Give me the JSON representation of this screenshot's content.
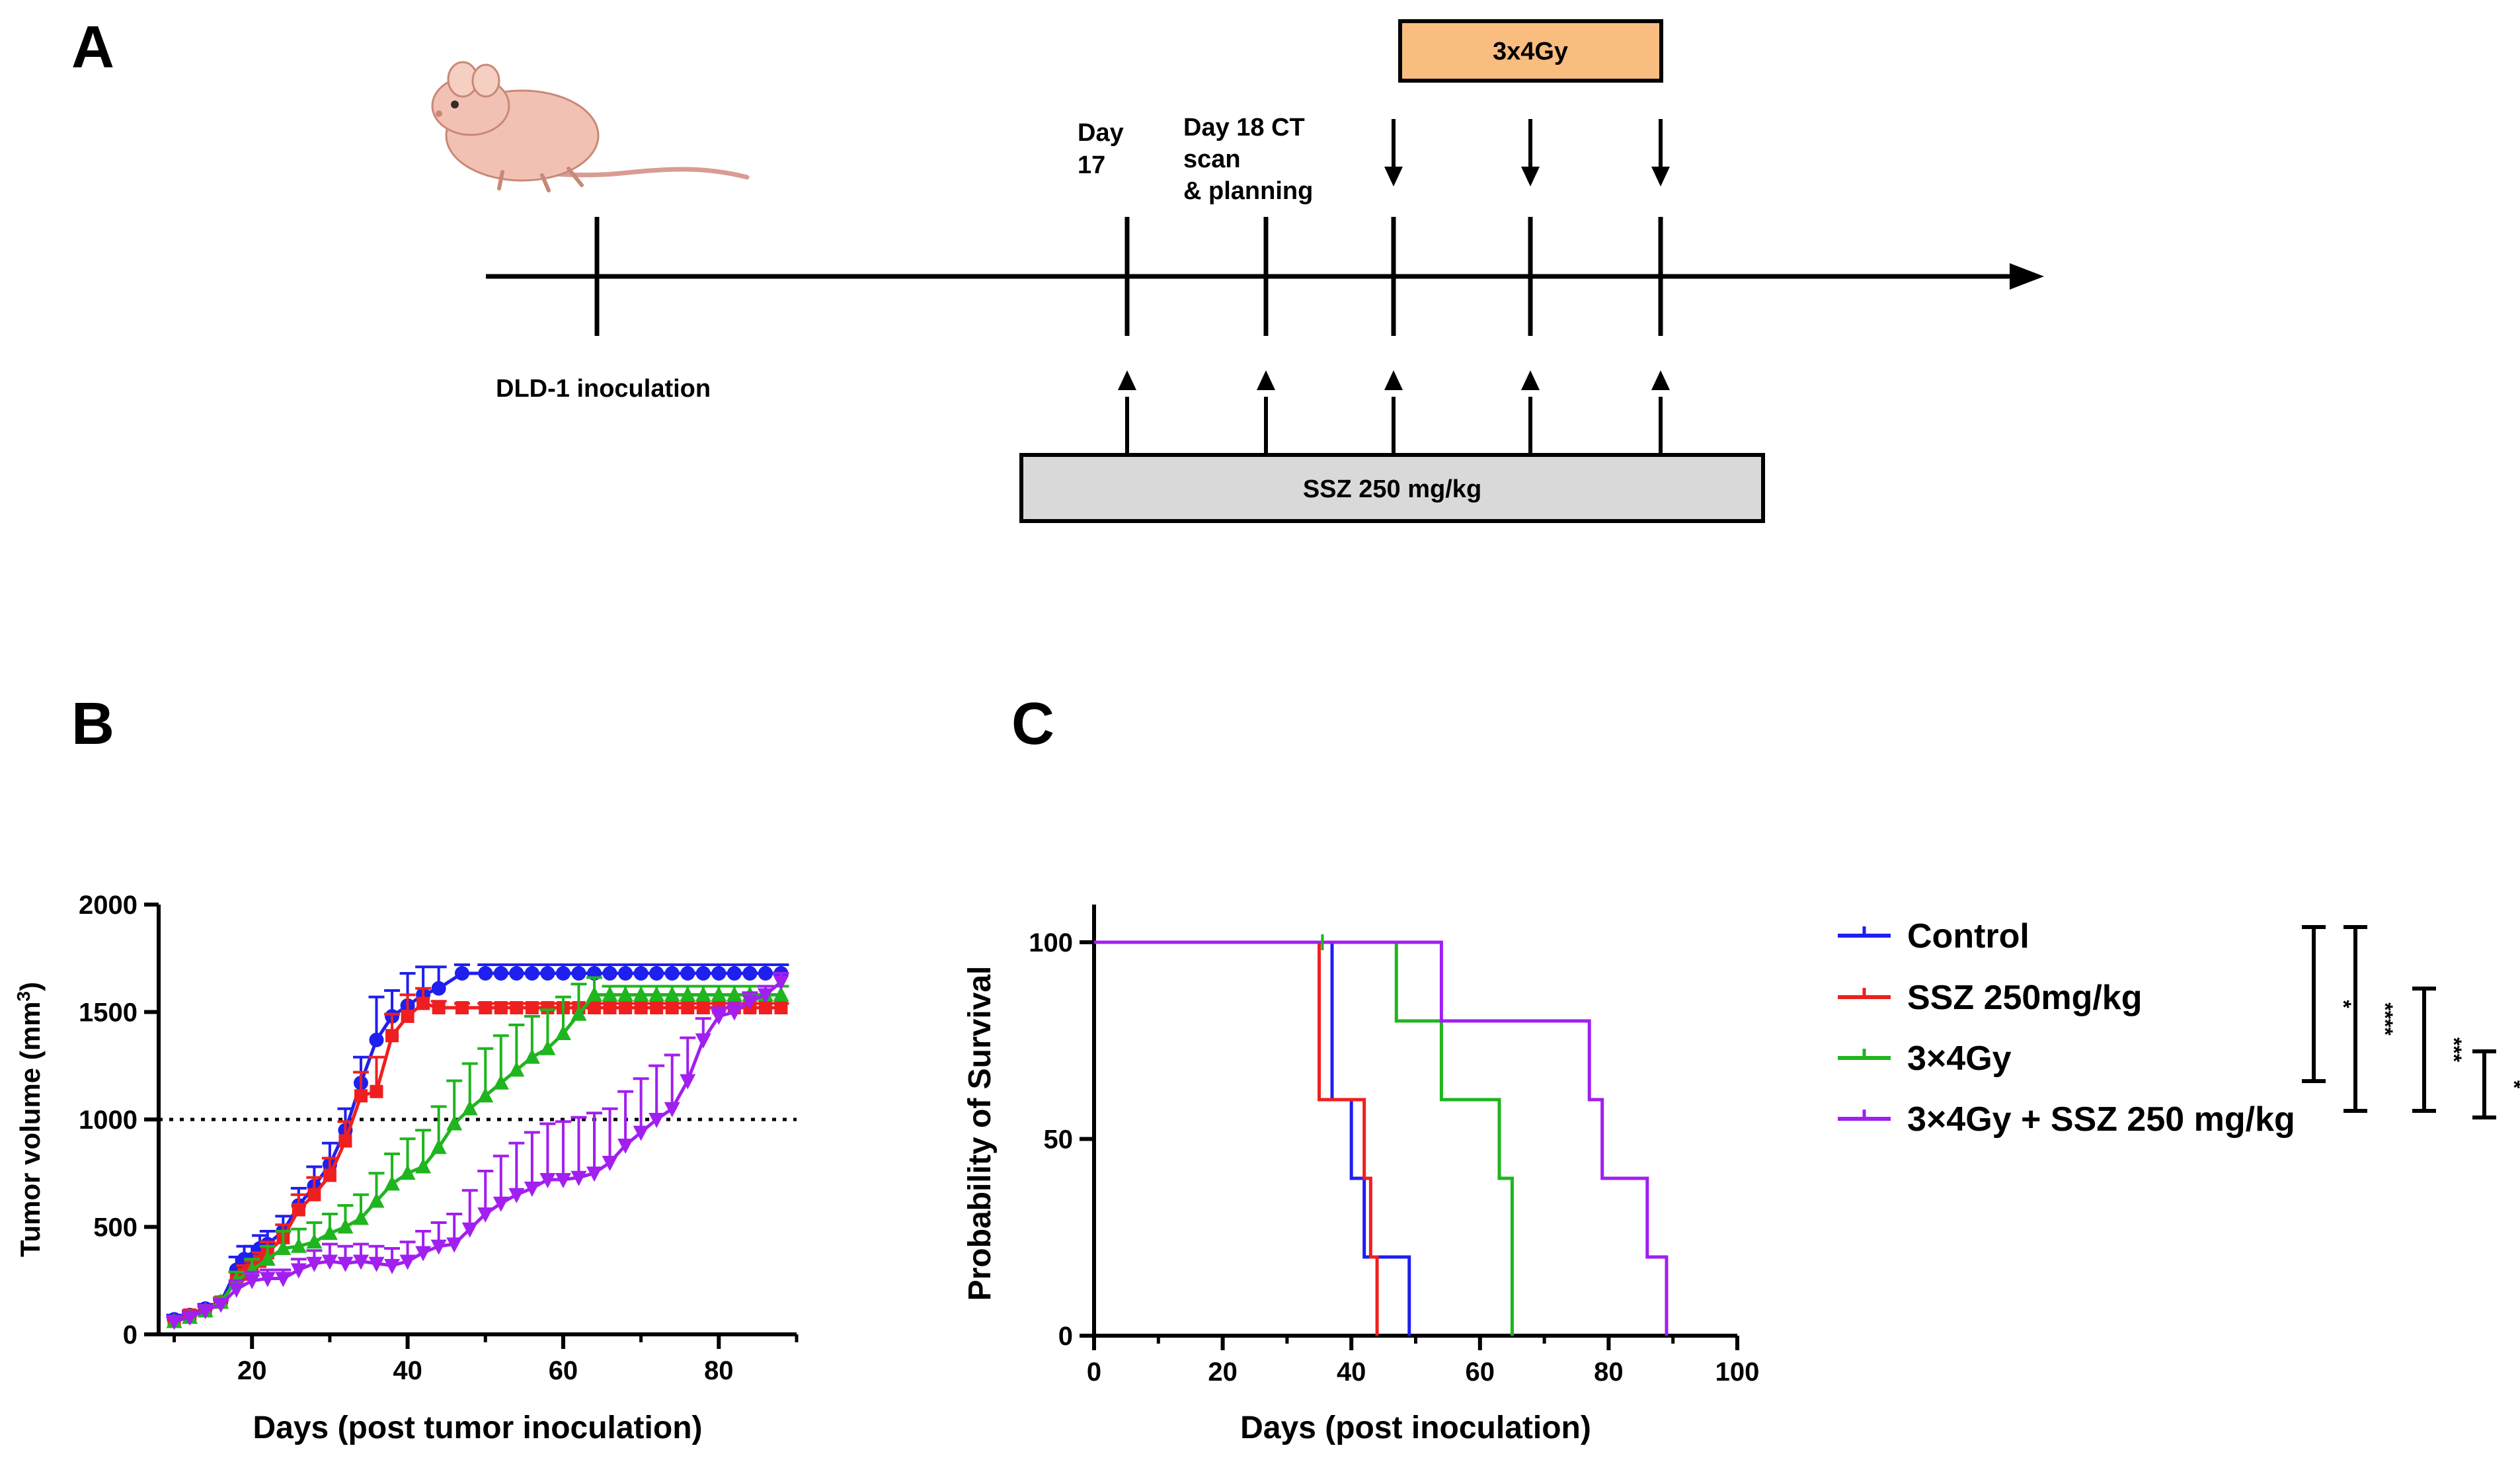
{
  "panels": {
    "a": "A",
    "b": "B",
    "c": "C"
  },
  "timeline": {
    "inoculation": "DLD-1 inoculation",
    "day17_line1": "Day",
    "day17_line2": "17",
    "day18_line1": "Day 18 CT",
    "day18_line2": "scan",
    "day18_line3": "& planning",
    "radiation_box": "3x4Gy",
    "ssz_box": "SSZ 250 mg/kg"
  },
  "colors": {
    "control": "#1f1fef",
    "ssz": "#ef1f1f",
    "rt": "#1fb51f",
    "combo": "#a11fef",
    "rt_box": "#f9bd80",
    "ssz_box": "#d9d9d9"
  },
  "chart_data": [
    {
      "type": "line",
      "title": "",
      "xlabel": "Days (post tumor inoculation)",
      "ylabel": "Tumor volume (mm",
      "ylabel_sup": "3",
      "ylabel_close": ")",
      "xlim": [
        8,
        90
      ],
      "ylim": [
        0,
        2000
      ],
      "xticks": [
        20,
        40,
        60,
        80
      ],
      "yticks": [
        0,
        500,
        1000,
        1500,
        2000
      ],
      "threshold": 1000,
      "series": [
        {
          "name": "Control",
          "color_key": "control",
          "marker": "circle",
          "x": [
            10,
            12,
            14,
            16,
            18,
            19,
            20,
            21,
            22,
            24,
            26,
            28,
            30,
            32,
            34,
            36,
            38,
            40,
            42,
            44,
            47,
            50,
            52,
            54,
            56,
            58,
            60,
            62,
            64,
            66,
            68,
            70,
            72,
            74,
            76,
            78,
            80,
            82,
            84,
            86,
            88
          ],
          "y": [
            70,
            90,
            120,
            150,
            300,
            350,
            350,
            400,
            420,
            480,
            600,
            690,
            790,
            950,
            1170,
            1370,
            1480,
            1530,
            1580,
            1610,
            1680,
            1680,
            1680,
            1680,
            1680,
            1680,
            1680,
            1680,
            1680,
            1680,
            1680,
            1680,
            1680,
            1680,
            1680,
            1680,
            1680,
            1680,
            1680,
            1680,
            1680
          ],
          "err": [
            20,
            20,
            20,
            20,
            60,
            60,
            60,
            60,
            60,
            70,
            80,
            90,
            100,
            100,
            120,
            200,
            120,
            150,
            130,
            100,
            40,
            40,
            40,
            40,
            40,
            40,
            40,
            40,
            40,
            40,
            40,
            40,
            40,
            40,
            40,
            40,
            40,
            40,
            40,
            40,
            40
          ]
        },
        {
          "name": "SSZ 250mg/kg",
          "color_key": "ssz",
          "marker": "square",
          "x": [
            10,
            12,
            14,
            16,
            18,
            19,
            20,
            21,
            22,
            24,
            26,
            28,
            30,
            32,
            34,
            36,
            38,
            40,
            42,
            44,
            47,
            50,
            52,
            54,
            56,
            58,
            60,
            62,
            64,
            66,
            68,
            70,
            72,
            74,
            76,
            78,
            80,
            82,
            84,
            86,
            88
          ],
          "y": [
            60,
            90,
            110,
            150,
            250,
            280,
            300,
            340,
            380,
            450,
            580,
            650,
            740,
            900,
            1110,
            1130,
            1390,
            1480,
            1540,
            1520,
            1520,
            1520,
            1520,
            1520,
            1520,
            1520,
            1520,
            1520,
            1520,
            1520,
            1520,
            1520,
            1520,
            1520,
            1520,
            1520,
            1520,
            1520,
            1520,
            1520,
            1520
          ],
          "err": [
            20,
            20,
            20,
            20,
            40,
            40,
            40,
            40,
            50,
            60,
            70,
            80,
            80,
            90,
            110,
            160,
            100,
            100,
            70,
            30,
            20,
            20,
            20,
            20,
            20,
            20,
            20,
            20,
            20,
            20,
            20,
            20,
            20,
            20,
            20,
            20,
            20,
            20,
            20,
            20,
            20
          ]
        },
        {
          "name": "3×4Gy",
          "color_key": "rt",
          "marker": "triangle",
          "x": [
            10,
            12,
            14,
            16,
            18,
            20,
            22,
            24,
            26,
            28,
            30,
            32,
            34,
            36,
            38,
            40,
            42,
            44,
            46,
            48,
            50,
            52,
            54,
            56,
            58,
            60,
            62,
            64,
            66,
            68,
            70,
            72,
            74,
            76,
            78,
            80,
            82,
            84,
            86,
            88
          ],
          "y": [
            60,
            80,
            110,
            150,
            250,
            300,
            350,
            400,
            410,
            430,
            470,
            500,
            540,
            620,
            700,
            750,
            780,
            870,
            980,
            1050,
            1110,
            1170,
            1230,
            1290,
            1330,
            1400,
            1490,
            1580,
            1580,
            1580,
            1580,
            1580,
            1580,
            1580,
            1580,
            1580,
            1580,
            1580,
            1580,
            1580
          ],
          "err": [
            20,
            20,
            20,
            20,
            40,
            50,
            60,
            80,
            80,
            90,
            90,
            100,
            110,
            130,
            140,
            160,
            170,
            190,
            200,
            210,
            220,
            220,
            210,
            190,
            180,
            170,
            140,
            80,
            40,
            40,
            40,
            40,
            40,
            40,
            40,
            40,
            40,
            40,
            40,
            40
          ]
        },
        {
          "name": "3×4Gy + SSZ 250 mg/kg",
          "color_key": "combo",
          "marker": "triangle-down",
          "x": [
            10,
            12,
            14,
            16,
            18,
            20,
            22,
            24,
            26,
            28,
            30,
            32,
            34,
            36,
            38,
            40,
            42,
            44,
            46,
            48,
            50,
            52,
            54,
            56,
            58,
            60,
            62,
            64,
            66,
            68,
            70,
            72,
            74,
            76,
            78,
            80,
            82,
            84,
            86,
            88
          ],
          "y": [
            60,
            80,
            110,
            140,
            210,
            250,
            260,
            260,
            300,
            330,
            340,
            330,
            340,
            330,
            320,
            340,
            380,
            410,
            420,
            490,
            560,
            610,
            650,
            680,
            720,
            720,
            730,
            750,
            800,
            880,
            940,
            1000,
            1050,
            1180,
            1370,
            1480,
            1500,
            1550,
            1580,
            1640
          ],
          "err": [
            20,
            20,
            20,
            20,
            40,
            40,
            40,
            40,
            50,
            60,
            80,
            80,
            80,
            80,
            80,
            90,
            100,
            110,
            140,
            180,
            200,
            220,
            240,
            260,
            260,
            270,
            280,
            280,
            250,
            250,
            250,
            250,
            250,
            200,
            100,
            40,
            40,
            40,
            40,
            40
          ]
        }
      ]
    },
    {
      "type": "line",
      "title": "",
      "xlabel": "Days (post inoculation)",
      "ylabel": "Probability of Survival",
      "xlim": [
        0,
        100
      ],
      "ylim": [
        0,
        100
      ],
      "xticks": [
        0,
        20,
        40,
        60,
        80,
        100
      ],
      "yticks": [
        0,
        50,
        100
      ],
      "series": [
        {
          "name": "Control",
          "color_key": "control",
          "points": [
            [
              0,
              100
            ],
            [
              37,
              100
            ],
            [
              37,
              60
            ],
            [
              40,
              60
            ],
            [
              40,
              40
            ],
            [
              42,
              40
            ],
            [
              42,
              20
            ],
            [
              49,
              20
            ],
            [
              49,
              0
            ]
          ]
        },
        {
          "name": "SSZ 250mg/kg",
          "color_key": "ssz",
          "points": [
            [
              0,
              100
            ],
            [
              35,
              100
            ],
            [
              35,
              60
            ],
            [
              42,
              60
            ],
            [
              42,
              40
            ],
            [
              43,
              40
            ],
            [
              43,
              20
            ],
            [
              44,
              20
            ],
            [
              44,
              0
            ]
          ]
        },
        {
          "name": "3×4Gy",
          "color_key": "rt",
          "points": [
            [
              0,
              100
            ],
            [
              47,
              100
            ],
            [
              47,
              80
            ],
            [
              54,
              80
            ],
            [
              54,
              60
            ],
            [
              63,
              60
            ],
            [
              63,
              40
            ],
            [
              65,
              40
            ],
            [
              65,
              0
            ]
          ]
        },
        {
          "name": "3×4Gy + SSZ 250 mg/kg",
          "color_key": "combo",
          "points": [
            [
              0,
              100
            ],
            [
              54,
              100
            ],
            [
              54,
              80
            ],
            [
              77,
              80
            ],
            [
              77,
              60
            ],
            [
              79,
              60
            ],
            [
              79,
              40
            ],
            [
              86,
              40
            ],
            [
              86,
              20
            ],
            [
              89,
              20
            ],
            [
              89,
              0
            ]
          ]
        }
      ],
      "significance": [
        "*",
        "****",
        "***",
        "*"
      ]
    }
  ]
}
